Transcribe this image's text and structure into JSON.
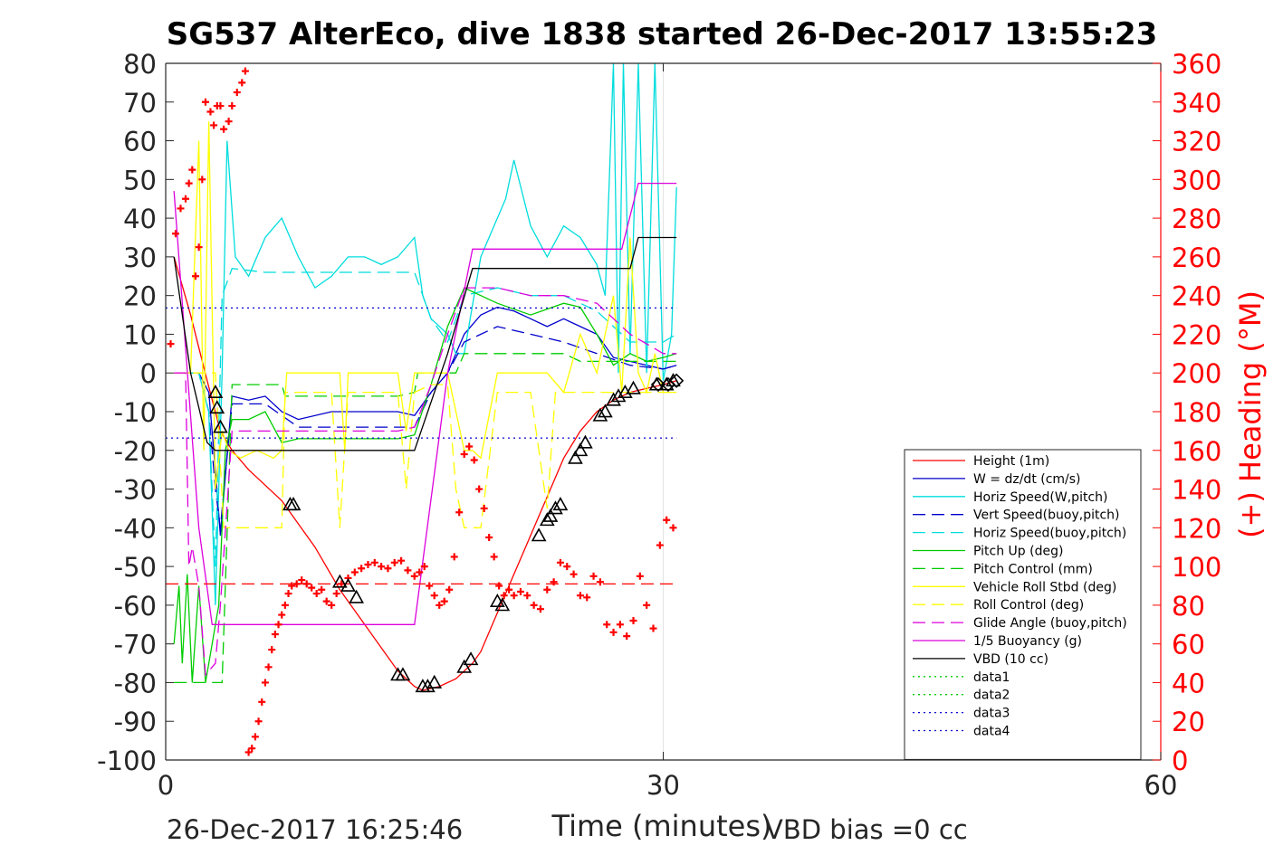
{
  "chart_data": {
    "type": "line",
    "title": "SG537 AlterEco, dive 1838 started 26-Dec-2017 13:55:23",
    "xlabel": "Time (minutes)",
    "ylabel": "",
    "y2label": "(+) Heading (°M)",
    "xlim": [
      0,
      60
    ],
    "ylim": [
      -100,
      80
    ],
    "y2lim": [
      0,
      360
    ],
    "xticks": [
      0,
      30,
      60
    ],
    "yticks": [
      -100,
      -90,
      -80,
      -70,
      -60,
      -50,
      -40,
      -30,
      -20,
      -10,
      0,
      10,
      20,
      30,
      40,
      50,
      60,
      70,
      80
    ],
    "y2ticks": [
      0,
      20,
      40,
      60,
      80,
      100,
      120,
      140,
      160,
      180,
      200,
      220,
      240,
      260,
      280,
      300,
      320,
      340,
      360
    ],
    "grid": "x only",
    "legend_position": "lower-right",
    "series": [
      {
        "name": "Height (1m)",
        "color": "#ff0000",
        "dash": "solid",
        "x": [
          0.5,
          1.5,
          2.5,
          3.3,
          4,
          5,
          7,
          9,
          10.5,
          12,
          14,
          15,
          15.5,
          16.5,
          17.5,
          18.5,
          19,
          20,
          21,
          22,
          23,
          24,
          25,
          26,
          27,
          28,
          29,
          30,
          30.8
        ],
        "y": [
          30,
          15,
          -2,
          -15,
          -20,
          -25,
          -33,
          -45,
          -56,
          -65,
          -77,
          -81,
          -82,
          -81,
          -79,
          -75,
          -72,
          -62,
          -52,
          -42,
          -32,
          -22,
          -15,
          -10,
          -7,
          -5,
          -4,
          -3,
          -2
        ]
      },
      {
        "name": "W = dz/dt (cm/s)",
        "color": "#0000cc",
        "dash": "solid",
        "x": [
          0.5,
          2,
          2.6,
          3,
          3.3,
          4,
          5,
          6,
          7,
          8,
          10,
          12,
          14,
          15,
          16,
          17,
          18,
          19,
          20,
          21,
          22,
          23,
          24,
          25,
          26,
          27,
          28,
          29,
          30,
          30.8
        ],
        "y": [
          0,
          0,
          -5,
          -25,
          -42,
          -6,
          -7,
          -6,
          -10,
          -12,
          -10,
          -10,
          -10,
          -11,
          -5,
          0,
          10,
          15,
          17,
          16,
          14,
          12,
          14,
          12,
          10,
          4,
          3,
          2,
          1,
          2
        ]
      },
      {
        "name": "Horiz Speed(W,pitch)",
        "color": "#00dddd",
        "dash": "solid",
        "x": [
          0.5,
          2,
          2.6,
          3,
          3.4,
          3.7,
          4.2,
          5,
          6,
          7,
          8,
          9,
          10,
          11,
          12,
          13,
          14,
          15,
          15.5,
          16,
          17,
          17.5,
          18,
          19,
          20,
          20.5,
          21,
          22,
          23,
          24,
          25,
          26,
          26.5,
          27,
          27.3,
          27.6,
          28,
          28.5,
          29,
          29.5,
          30,
          30.5,
          30.8
        ],
        "y": [
          0,
          0,
          -10,
          -60,
          0,
          60,
          30,
          25,
          35,
          40,
          30,
          22,
          25,
          30,
          30,
          28,
          30,
          35,
          20,
          14,
          10,
          5,
          5,
          30,
          40,
          45,
          55,
          38,
          30,
          38,
          35,
          28,
          20,
          80,
          0,
          80,
          5,
          80,
          0,
          80,
          -2,
          10,
          48
        ]
      },
      {
        "name": "Vert Speed(buoy,pitch)",
        "color": "#0000cc",
        "dash": "dash",
        "x": [
          0.5,
          2,
          2.6,
          3,
          3.3,
          4,
          6,
          8,
          12,
          15,
          16,
          17,
          18,
          20,
          22,
          24,
          26,
          28,
          30,
          30.8
        ],
        "y": [
          0,
          0,
          -10,
          -30,
          -40,
          -8,
          -8,
          -14,
          -14,
          -14,
          -5,
          0,
          8,
          12,
          10,
          8,
          5,
          2,
          1,
          2
        ]
      },
      {
        "name": "Horiz Speed(buoy,pitch)",
        "color": "#00dddd",
        "dash": "dash",
        "x": [
          0.5,
          2,
          2.6,
          3,
          3.4,
          4,
          6,
          8,
          12,
          15,
          16,
          17,
          18,
          20,
          22,
          24,
          26,
          28,
          30,
          30.8
        ],
        "y": [
          0,
          0,
          -10,
          -50,
          20,
          27,
          26,
          26,
          26,
          26,
          14,
          8,
          20,
          22,
          20,
          20,
          16,
          8,
          8,
          10
        ]
      },
      {
        "name": "Pitch Up (deg)",
        "color": "#00cc00",
        "dash": "solid",
        "x": [
          0.5,
          0.8,
          1,
          1.3,
          1.6,
          2,
          2.4,
          2.8,
          3.2,
          3.6,
          4,
          5,
          6,
          7,
          8,
          10,
          12,
          14,
          15,
          16,
          17,
          18,
          19,
          20,
          22,
          24,
          25,
          26,
          27,
          28,
          29,
          30,
          30.8
        ],
        "y": [
          -70,
          -55,
          -75,
          -52,
          -80,
          -55,
          -80,
          -70,
          -60,
          -20,
          -12,
          -12,
          -10,
          -18,
          -17,
          -17,
          -17,
          -17,
          -16,
          -3,
          12,
          22,
          20,
          18,
          15,
          18,
          17,
          10,
          2,
          5,
          3,
          4,
          5
        ]
      },
      {
        "name": "Pitch Control (mm)",
        "color": "#00cc00",
        "dash": "dash",
        "x": [
          0.5,
          2.5,
          3,
          3.4,
          4,
          7,
          7.2,
          10,
          12,
          14,
          15,
          15.2,
          17.5,
          18,
          20,
          24,
          25,
          26,
          28,
          30,
          30.8
        ],
        "y": [
          -80,
          -80,
          -80,
          -80,
          -3,
          -3,
          -6,
          -6,
          -6,
          -6,
          -5,
          0,
          0,
          5,
          5,
          5,
          3,
          3,
          3,
          3,
          3
        ]
      },
      {
        "name": "Vehicle Roll Stbd (deg)",
        "color": "#ffff00",
        "dash": "solid",
        "x": [
          0.5,
          1.5,
          2,
          2.3,
          2.6,
          3,
          3.4,
          3.8,
          4.5,
          5.5,
          6.5,
          7,
          7.3,
          9,
          10.5,
          10.8,
          11,
          13,
          14,
          14.5,
          15,
          16,
          17,
          18,
          18.5,
          19,
          20,
          22,
          23,
          24,
          25,
          26,
          27,
          27.5,
          28,
          28.5,
          29,
          29.5,
          30,
          30.8
        ],
        "y": [
          0,
          0,
          60,
          -20,
          65,
          -30,
          -15,
          -20,
          -22,
          -20,
          -22,
          -20,
          0,
          0,
          0,
          -20,
          0,
          0,
          0,
          -15,
          0,
          0,
          0,
          -20,
          -20,
          -22,
          0,
          0,
          0,
          -5,
          10,
          0,
          20,
          -5,
          35,
          0,
          -5,
          5,
          -5,
          -5
        ]
      },
      {
        "name": "Roll Control (deg)",
        "color": "#ffff00",
        "dash": "dash",
        "x": [
          0.5,
          3,
          3.5,
          4,
          7,
          7.2,
          10,
          10.5,
          11,
          14,
          14.5,
          15,
          16,
          17,
          17.5,
          18,
          19,
          20,
          21,
          22,
          23,
          23.5,
          24,
          25,
          26,
          27,
          28,
          30,
          30.8
        ],
        "y": [
          0,
          0,
          -40,
          -40,
          -40,
          -5,
          -5,
          -40,
          -5,
          -5,
          -30,
          -5,
          -3,
          -3,
          -30,
          -40,
          -40,
          -5,
          -5,
          -5,
          -35,
          -5,
          -5,
          -5,
          -5,
          -5,
          -5,
          -5,
          -5
        ]
      },
      {
        "name": "Glide Angle (buoy,pitch)",
        "color": "#dd00dd",
        "dash": "dash",
        "x": [
          0.5,
          1.2,
          1.4,
          1.6,
          2,
          2.4,
          3,
          3.3,
          4,
          7,
          10,
          14,
          15,
          16,
          17,
          18,
          19,
          20,
          22,
          24,
          26,
          28,
          30,
          30.8
        ],
        "y": [
          0,
          0,
          -50,
          -45,
          -55,
          -78,
          -75,
          -60,
          -15,
          -15,
          -15,
          -15,
          -14,
          -3,
          10,
          22,
          22,
          22,
          20,
          20,
          18,
          10,
          5,
          5
        ]
      },
      {
        "name": "1/5 Buoyancy (g)",
        "color": "#dd00dd",
        "dash": "solid",
        "x": [
          0.5,
          2,
          2.8,
          3,
          15,
          17,
          18.5,
          27.5,
          28.5,
          30.8
        ],
        "y": [
          47,
          -40,
          -65,
          -65,
          -65,
          0,
          32,
          32,
          49,
          49
        ]
      },
      {
        "name": "VBD (10 cc)",
        "color": "#000000",
        "dash": "solid",
        "x": [
          0.5,
          1.5,
          2.5,
          3,
          15,
          17,
          18.5,
          28,
          28.5,
          30.8
        ],
        "y": [
          30,
          0,
          -18,
          -20,
          -20,
          5,
          27,
          27,
          35,
          35
        ]
      },
      {
        "name": "data1",
        "color": "#00cc00",
        "dash": "dot",
        "x": [],
        "y": []
      },
      {
        "name": "data2",
        "color": "#00cc00",
        "dash": "dot",
        "x": [],
        "y": []
      },
      {
        "name": "data3",
        "color": "#0000cc",
        "dash": "dot",
        "x": [
          0,
          30.8
        ],
        "y": [
          16.8,
          16.8
        ]
      },
      {
        "name": "data4",
        "color": "#0000cc",
        "dash": "dot",
        "x": [
          0,
          30.8
        ],
        "y": [
          -16.8,
          -16.8
        ]
      }
    ],
    "reference_lines": [
      {
        "color": "#ff0000",
        "dash": "dash",
        "x": [
          0,
          30.8
        ],
        "y": [
          -54.5,
          -54.5
        ]
      }
    ],
    "heading_series": {
      "name": "(+) Heading (°M)",
      "color": "#ff0000",
      "marker": "+",
      "x": [
        0.3,
        0.6,
        0.9,
        1.2,
        1.4,
        1.6,
        1.8,
        2.0,
        2.2,
        2.4,
        2.7,
        2.9,
        3.1,
        3.3,
        3.5,
        3.8,
        4.0,
        4.3,
        4.6,
        4.8,
        5.0,
        5.2,
        5.4,
        5.6,
        5.8,
        6.0,
        6.2,
        6.4,
        6.6,
        6.8,
        7.0,
        7.2,
        7.4,
        7.6,
        7.9,
        8.2,
        8.5,
        8.8,
        9.1,
        9.4,
        9.7,
        10.0,
        10.3,
        10.6,
        11.0,
        11.4,
        11.8,
        12.2,
        12.6,
        13.0,
        13.4,
        13.8,
        14.2,
        14.6,
        15.0,
        15.3,
        15.6,
        15.9,
        16.2,
        16.5,
        16.8,
        17.1,
        17.4,
        17.7,
        18.0,
        18.3,
        18.6,
        18.9,
        19.2,
        19.5,
        19.8,
        20.1,
        20.4,
        20.7,
        21.0,
        21.4,
        21.8,
        22.2,
        22.6,
        23.0,
        23.4,
        23.8,
        24.2,
        24.6,
        25.0,
        25.4,
        25.8,
        26.2,
        26.6,
        27.0,
        27.4,
        27.8,
        28.2,
        28.6,
        29.0,
        29.4,
        29.8,
        30.2,
        30.6
      ],
      "y": [
        215,
        272,
        285,
        290,
        298,
        305,
        250,
        265,
        300,
        340,
        335,
        328,
        338,
        338,
        326,
        330,
        338,
        345,
        350,
        356,
        4,
        6,
        12,
        20,
        30,
        40,
        48,
        57,
        65,
        70,
        75,
        80,
        86,
        90,
        91,
        93,
        91,
        89,
        86,
        88,
        82,
        80,
        86,
        91,
        94,
        97,
        99,
        101,
        102,
        100,
        99,
        102,
        103,
        98,
        95,
        97,
        100,
        90,
        85,
        80,
        82,
        88,
        105,
        128,
        158,
        162,
        155,
        140,
        130,
        115,
        105,
        90,
        85,
        88,
        85,
        87,
        85,
        80,
        78,
        88,
        92,
        102,
        100,
        96,
        85,
        84,
        95,
        92,
        70,
        66,
        70,
        64,
        72,
        95,
        80,
        68,
        111,
        124,
        120
      ]
    },
    "markers_triangle": {
      "x": [
        3.0,
        3.1,
        3.3,
        7.5,
        7.7,
        10.5,
        11.0,
        11.5,
        14.0,
        14.3,
        15.5,
        15.8,
        16.2,
        18.0,
        18.4,
        20.0,
        20.3,
        22.5,
        23.0,
        23.2,
        23.5,
        23.8,
        24.7,
        25.0,
        25.3,
        26.2,
        26.5,
        27.0,
        27.3,
        27.7,
        28.2,
        29.6,
        30.2,
        30.6
      ],
      "y": [
        -5,
        -9,
        -14,
        -34,
        -34,
        -54,
        -55,
        -58,
        -78,
        -78,
        -81,
        -81,
        -80,
        -76,
        -74,
        -59,
        -60,
        -42,
        -38,
        -37,
        -35,
        -34,
        -22,
        -20,
        -18,
        -11,
        -10,
        -7,
        -6,
        -5,
        -4,
        -3,
        -3,
        -2
      ]
    },
    "markers_diamond": {
      "x": [
        29.7,
        30.3,
        30.8
      ],
      "y": [
        -3,
        -3,
        -2
      ]
    },
    "footer": {
      "timestamp": "26-Dec-2017 16:25:46",
      "vbd_bias": "VBD bias =0 cc"
    }
  }
}
